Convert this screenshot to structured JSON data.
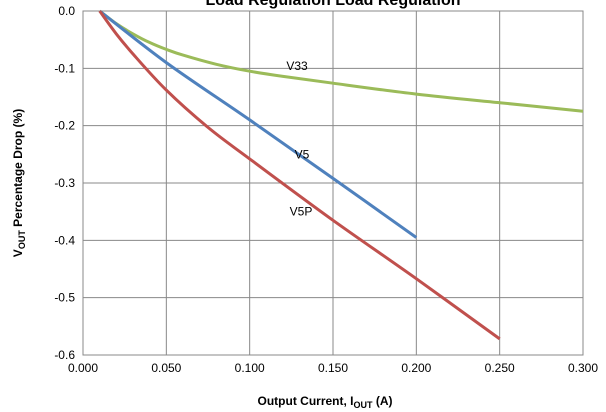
{
  "chart_data": {
    "type": "line",
    "title": "Load Regulation Load Regulation",
    "xlabel_main": "Output Current, I",
    "xlabel_sub": "OUT",
    "xlabel_tail": " (A)",
    "ylabel_pre": "V",
    "ylabel_sub": "OUT",
    "ylabel_tail": " Percentage Drop (%)",
    "xlim": [
      0,
      0.3
    ],
    "ylim": [
      -0.6,
      0.0
    ],
    "x_ticks": [
      0,
      0.05,
      0.1,
      0.15,
      0.2,
      0.25,
      0.3
    ],
    "x_tick_labels": [
      "0.000",
      "0.050",
      "0.100",
      "0.150",
      "0.200",
      "0.250",
      "0.300"
    ],
    "y_ticks": [
      0,
      -0.1,
      -0.2,
      -0.3,
      -0.4,
      -0.5,
      -0.6
    ],
    "y_tick_labels": [
      "0.0",
      "-0.1",
      "-0.2",
      "-0.3",
      "-0.4",
      "-0.5",
      "-0.6"
    ],
    "grid": true,
    "series": [
      {
        "name": "V33",
        "color": "#9bbb59",
        "x": [
          0.01,
          0.02,
          0.03,
          0.04,
          0.05,
          0.06,
          0.08,
          0.1,
          0.12,
          0.15,
          0.2,
          0.25,
          0.3
        ],
        "y": [
          0.0,
          -0.022,
          -0.04,
          -0.055,
          -0.067,
          -0.077,
          -0.093,
          -0.105,
          -0.114,
          -0.126,
          -0.145,
          -0.16,
          -0.175
        ]
      },
      {
        "name": "V5",
        "color": "#4f81bd",
        "x": [
          0.01,
          0.05,
          0.1,
          0.15,
          0.2
        ],
        "y": [
          0.0,
          -0.09,
          -0.19,
          -0.292,
          -0.395
        ]
      },
      {
        "name": "V5P",
        "color": "#c0504d",
        "x": [
          0.01,
          0.02,
          0.03,
          0.05,
          0.075,
          0.1,
          0.15,
          0.2,
          0.25
        ],
        "y": [
          0.0,
          -0.04,
          -0.075,
          -0.138,
          -0.203,
          -0.258,
          -0.365,
          -0.467,
          -0.572
        ]
      }
    ],
    "annotations": [
      {
        "text": "V33",
        "x": 0.122,
        "y": -0.103
      },
      {
        "text": "V5",
        "x": 0.127,
        "y": -0.257
      },
      {
        "text": "V5P",
        "x": 0.124,
        "y": -0.357
      }
    ]
  }
}
